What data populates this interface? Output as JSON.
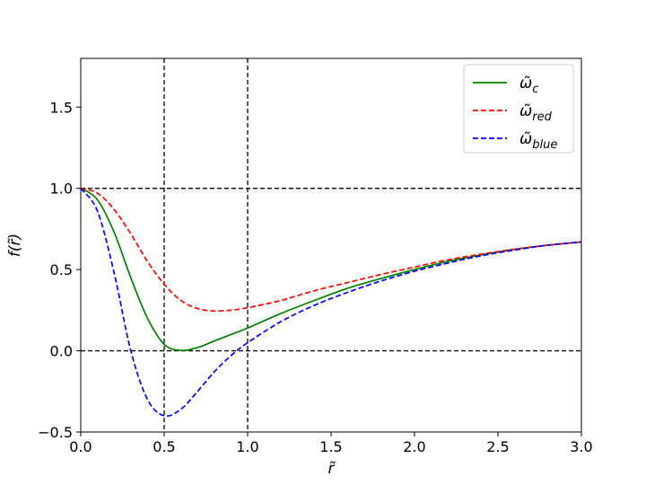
{
  "chart_data": {
    "type": "line",
    "title": "",
    "xlabel": "r̃",
    "ylabel": "f(r̃)",
    "xlim": [
      0.0,
      3.0
    ],
    "ylim": [
      -0.5,
      1.8
    ],
    "xticks": [
      0.0,
      0.5,
      1.0,
      1.5,
      2.0,
      2.5,
      3.0
    ],
    "xtick_labels": [
      "0.0",
      "0.5",
      "1.0",
      "1.5",
      "2.0",
      "2.5",
      "3.0"
    ],
    "yticks": [
      -0.5,
      0.0,
      0.5,
      1.0,
      1.5
    ],
    "ytick_labels": [
      "−0.5",
      "0.0",
      "0.5",
      "1.0",
      "1.5"
    ],
    "legend_position": "top-right",
    "reference_lines": {
      "horizontal": [
        0.0,
        1.0
      ],
      "vertical": [
        0.5,
        1.0
      ],
      "color": "#000000",
      "style": "dashed"
    },
    "x": [
      0.0,
      0.1,
      0.2,
      0.3,
      0.4,
      0.5,
      0.6,
      0.7,
      0.8,
      0.9,
      1.0,
      1.2,
      1.4,
      1.6,
      1.8,
      2.0,
      2.2,
      2.4,
      2.6,
      2.8,
      3.0
    ],
    "series": [
      {
        "name": "ω̃",
        "subscript": "c",
        "color": "#008000",
        "style": "solid",
        "values": [
          1.0,
          0.93,
          0.73,
          0.45,
          0.2,
          0.04,
          0.002,
          0.02,
          0.06,
          0.1,
          0.14,
          0.23,
          0.31,
          0.385,
          0.445,
          0.5,
          0.55,
          0.59,
          0.625,
          0.65,
          0.67
        ]
      },
      {
        "name": "ω̃",
        "subscript": "red",
        "color": "#ff0000",
        "style": "dashed",
        "values": [
          1.0,
          0.97,
          0.87,
          0.72,
          0.55,
          0.41,
          0.31,
          0.26,
          0.245,
          0.25,
          0.265,
          0.31,
          0.37,
          0.42,
          0.47,
          0.515,
          0.56,
          0.595,
          0.625,
          0.65,
          0.67
        ]
      },
      {
        "name": "ω̃",
        "subscript": "blue",
        "color": "#0000ff",
        "style": "dashed",
        "values": [
          1.0,
          0.86,
          0.48,
          0.0,
          -0.3,
          -0.4,
          -0.36,
          -0.25,
          -0.13,
          -0.03,
          0.05,
          0.18,
          0.28,
          0.36,
          0.43,
          0.49,
          0.54,
          0.585,
          0.62,
          0.65,
          0.67
        ]
      }
    ]
  }
}
